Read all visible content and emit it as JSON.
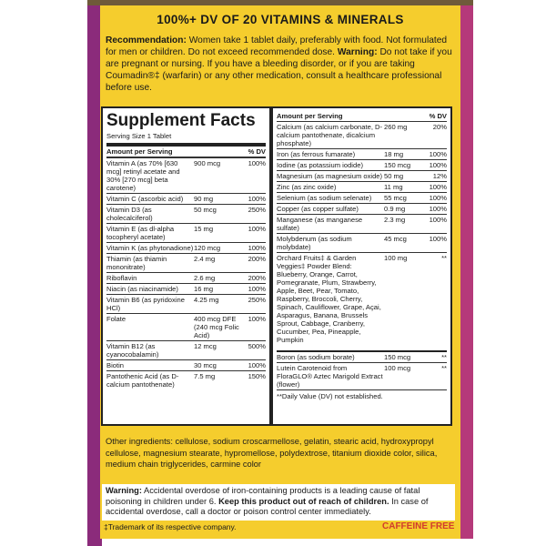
{
  "header": {
    "title": "100%+ DV OF 20 VITAMINS & MINERALS"
  },
  "recommendation": {
    "label": "Recommendation:",
    "text": "Women take 1 tablet daily, preferably with food. Not formulated for men or children. Do not exceed recommended dose.",
    "warning_label": "Warning:",
    "warning_text": "Do not take if you are pregnant or nursing. If you have a bleeding disorder, or if you are taking Coumadin®‡ (warfarin) or any other medication, consult a healthcare professional before use."
  },
  "facts": {
    "title": "Supplement Facts",
    "serving_size": "Serving Size 1 Tablet",
    "amount_header": "Amount per Serving",
    "dv_header": "% DV",
    "left_rows": [
      [
        "Vitamin A (as 70% [630 mcg] retinyl acetate and 30% [270 mcg] beta carotene)",
        "900 mcg",
        "100%"
      ],
      [
        "Vitamin C (ascorbic acid)",
        "90 mg",
        "100%"
      ],
      [
        "Vitamin D3 (as cholecalciferol)",
        "50 mcg",
        "250%"
      ],
      [
        "Vitamin E (as dl-alpha tocopheryl acetate)",
        "15 mg",
        "100%"
      ],
      [
        "Vitamin K (as phytonadione)",
        "120 mcg",
        "100%"
      ],
      [
        "Thiamin (as thiamin mononitrate)",
        "2.4 mg",
        "200%"
      ],
      [
        "Riboflavin",
        "2.6 mg",
        "200%"
      ],
      [
        "Niacin (as niacinamide)",
        "16 mg",
        "100%"
      ],
      [
        "Vitamin B6 (as pyridoxine HCl)",
        "4.25 mg",
        "250%"
      ],
      [
        "Folate",
        "400 mcg DFE (240 mcg Folic Acid)",
        "100%"
      ],
      [
        "Vitamin B12 (as cyanocobalamin)",
        "12 mcg",
        "500%"
      ],
      [
        "Biotin",
        "30 mcg",
        "100%"
      ],
      [
        "Pantothenic Acid (as D-calcium pantothenate)",
        "7.5 mg",
        "150%"
      ]
    ],
    "right_rows": [
      [
        "Calcium (as calcium carbonate, D-calcium pantothenate, dicalcium phosphate)",
        "260 mg",
        "20%"
      ],
      [
        "Iron (as ferrous fumarate)",
        "18 mg",
        "100%"
      ],
      [
        "Iodine (as potassium iodide)",
        "150 mcg",
        "100%"
      ],
      [
        "Magnesium (as magnesium oxide)",
        "50 mg",
        "12%"
      ],
      [
        "Zinc (as zinc oxide)",
        "11 mg",
        "100%"
      ],
      [
        "Selenium (as sodium selenate)",
        "55 mcg",
        "100%"
      ],
      [
        "Copper (as copper sulfate)",
        "0.9 mg",
        "100%"
      ],
      [
        "Manganese (as manganese sulfate)",
        "2.3 mg",
        "100%"
      ],
      [
        "Molybdenum (as sodium molybdate)",
        "45 mcg",
        "100%"
      ],
      [
        "Orchard Fruits‡ & Garden Veggies‡ Powder Blend: Blueberry, Orange, Carrot, Pomegranate, Plum, Strawberry, Apple, Beet, Pear, Tomato, Raspberry, Broccoli, Cherry, Spinach, Cauliflower, Grape, Açai, Asparagus, Banana, Brussels Sprout, Cabbage, Cranberry, Cucumber, Pea, Pineapple, Pumpkin",
        "100 mg",
        "**"
      ],
      [
        "Boron (as sodium borate)",
        "150 mcg",
        "**"
      ],
      [
        "Lutein Carotenoid from FloraGLO® Aztec Marigold Extract (flower)",
        "100 mcg",
        "**"
      ]
    ],
    "footnote": "**Daily Value (DV) not established."
  },
  "other_ingredients": "Other ingredients: cellulose, sodium croscarmellose, gelatin, stearic acid, hydroxypropyl cellulose, magnesium stearate, hypromellose, polydextrose, titanium dioxide color, silica, medium chain triglycerides, carmine color",
  "warning": {
    "label": "Warning:",
    "text1": "Accidental overdose of iron-containing products is a leading cause of fatal poisoning in children under 6.",
    "bold": "Keep this product out of reach of children.",
    "text2": "In case of accidental overdose, call a doctor or poison control center immediately."
  },
  "footer": {
    "trademark": "‡Trademark of its respective company.",
    "badge": "CAFFEINE FREE"
  }
}
